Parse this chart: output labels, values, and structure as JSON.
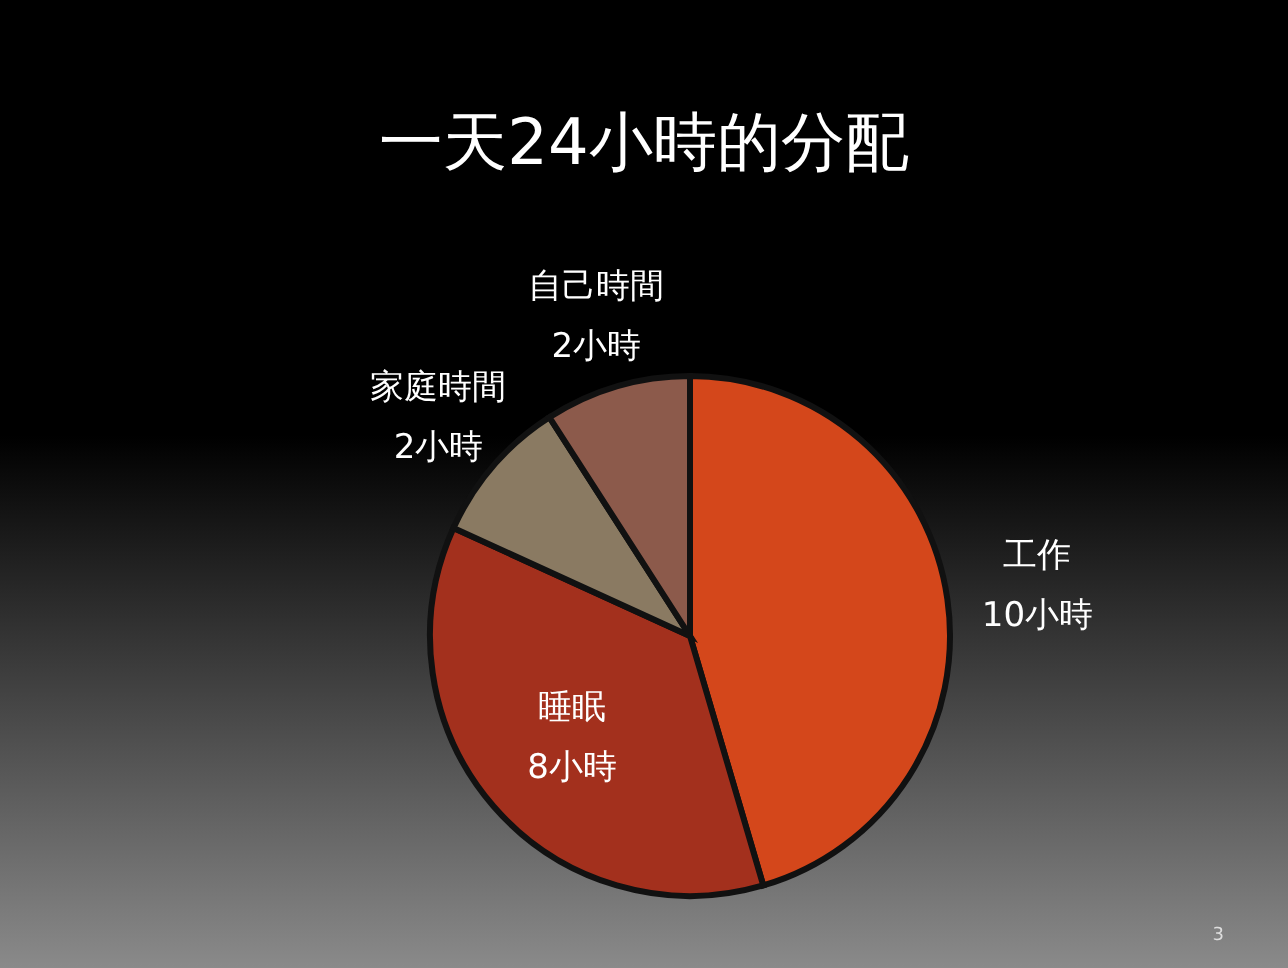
{
  "chart_data": {
    "type": "pie",
    "title": "一天24小時的分配",
    "categories": [
      "工作",
      "睡眠",
      "家庭時間",
      "自己時間"
    ],
    "values": [
      10,
      8,
      2,
      2
    ],
    "value_labels": [
      "10小時",
      "8小時",
      "2小時",
      "2小時"
    ],
    "colors": [
      "#d4471b",
      "#a3301d",
      "#8a7a62",
      "#8c5a4b"
    ],
    "annotations": [
      "3"
    ]
  }
}
